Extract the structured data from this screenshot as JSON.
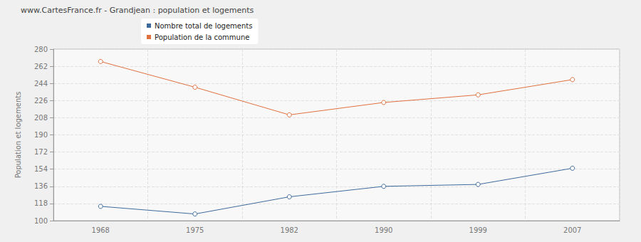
{
  "chart_data": {
    "type": "line",
    "title": "www.CartesFrance.fr - Grandjean : population et logements",
    "ylabel": "Population et logements",
    "categories": [
      "1968",
      "1975",
      "1982",
      "1990",
      "1999",
      "2007"
    ],
    "series": [
      {
        "name": "Nombre total de logements",
        "color": "#3e6a9b",
        "values": [
          115,
          107,
          125,
          136,
          138,
          155
        ]
      },
      {
        "name": "Population de la commune",
        "color": "#e0703f",
        "values": [
          267,
          240,
          211,
          224,
          232,
          248
        ]
      }
    ],
    "ylim": [
      100,
      280
    ],
    "yticks": [
      100,
      118,
      136,
      154,
      172,
      190,
      208,
      226,
      244,
      262,
      280
    ],
    "grid": true,
    "legend": "top",
    "marker": "circle"
  }
}
